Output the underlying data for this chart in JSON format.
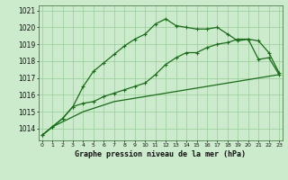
{
  "title": "",
  "xlabel": "Graphe pression niveau de la mer (hPa)",
  "background_color": "#cceacc",
  "grid_color": "#99cc99",
  "line_color": "#1a6b1a",
  "x": [
    0,
    1,
    2,
    3,
    4,
    5,
    6,
    7,
    8,
    9,
    10,
    11,
    12,
    13,
    14,
    15,
    16,
    17,
    18,
    19,
    20,
    21,
    22,
    23
  ],
  "line1_y": [
    1013.6,
    1014.1,
    1014.6,
    1015.3,
    1016.5,
    1017.4,
    1017.9,
    1018.4,
    1018.9,
    1019.3,
    1019.6,
    1020.2,
    1020.5,
    1020.1,
    1020.0,
    1019.9,
    1019.9,
    1020.0,
    1019.6,
    1019.2,
    1019.3,
    1018.1,
    1018.2,
    1017.2
  ],
  "line2_y": [
    1013.6,
    1014.1,
    1014.6,
    1015.3,
    1015.5,
    1015.6,
    1015.9,
    1016.1,
    1016.3,
    1016.5,
    1016.7,
    1017.2,
    1017.8,
    1018.2,
    1018.5,
    1018.5,
    1018.8,
    1019.0,
    1019.1,
    1019.3,
    1019.3,
    1019.2,
    1018.5,
    1017.3
  ],
  "line3_y": [
    1013.6,
    1014.1,
    1014.4,
    1014.7,
    1015.0,
    1015.2,
    1015.4,
    1015.6,
    1015.7,
    1015.8,
    1015.9,
    1016.0,
    1016.1,
    1016.2,
    1016.3,
    1016.4,
    1016.5,
    1016.6,
    1016.7,
    1016.8,
    1016.9,
    1017.0,
    1017.1,
    1017.2
  ],
  "ylim": [
    1013.3,
    1021.3
  ],
  "yticks": [
    1014,
    1015,
    1016,
    1017,
    1018,
    1019,
    1020,
    1021
  ],
  "xlim": [
    -0.3,
    23.3
  ],
  "markersize": 3,
  "linewidth": 0.9
}
